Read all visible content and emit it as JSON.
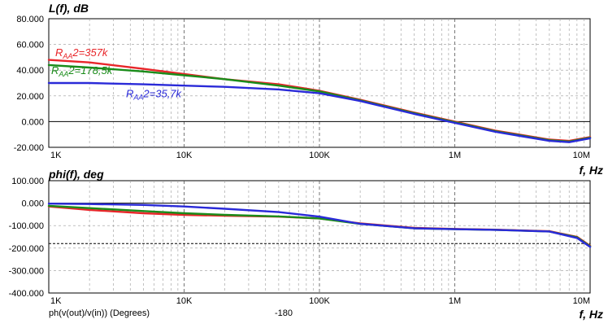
{
  "chart_data": [
    {
      "type": "line",
      "title": "L(f), dB",
      "xlabel": "f, Hz",
      "xscale": "log",
      "xlim": [
        1000,
        10000000
      ],
      "ylim": [
        -20,
        80
      ],
      "xtick_labels": [
        "1K",
        "10K",
        "100K",
        "1M",
        "10M"
      ],
      "ytick_labels": [
        "80.000",
        "60.000",
        "40.000",
        "20.000",
        "0.000",
        "-20.000"
      ],
      "grid": true,
      "series": [
        {
          "name": "RAA2=357k",
          "label_main": "R",
          "label_sub": "AA",
          "label_tail": "2=357k",
          "color": "#e8262a",
          "x": [
            1000,
            2000,
            5000,
            10000,
            20000,
            50000,
            100000,
            200000,
            500000,
            1000000,
            2000000,
            5000000,
            7000000,
            10000000
          ],
          "y": [
            48,
            46,
            41,
            37,
            33,
            29,
            24,
            17,
            7,
            0,
            -7,
            -14,
            -15,
            -12
          ]
        },
        {
          "name": "RAA2=178,5k",
          "label_main": "R",
          "label_sub": "AA",
          "label_tail": "2=178,5k",
          "color": "#1a8c1a",
          "x": [
            1000,
            2000,
            5000,
            10000,
            20000,
            50000,
            100000,
            200000,
            500000,
            1000000,
            2000000,
            5000000,
            7000000,
            10000000
          ],
          "y": [
            44,
            42,
            39,
            36,
            33,
            28,
            23.5,
            16.5,
            6.5,
            -0.5,
            -7.5,
            -14.5,
            -15.5,
            -12.5
          ]
        },
        {
          "name": "RAA2=35,7k",
          "label_main": "R",
          "label_sub": "AA",
          "label_tail": "2=35,7k",
          "color": "#2a2ad8",
          "x": [
            1000,
            2000,
            5000,
            10000,
            20000,
            50000,
            100000,
            200000,
            500000,
            1000000,
            2000000,
            5000000,
            7000000,
            10000000
          ],
          "y": [
            30,
            30,
            29,
            28,
            27,
            25,
            22,
            16,
            6,
            -1,
            -8,
            -15,
            -16,
            -13
          ]
        }
      ]
    },
    {
      "type": "line",
      "title": "phi(f), deg",
      "xlabel": "f, Hz",
      "xscale": "log",
      "xlim": [
        1000,
        10000000
      ],
      "ylim": [
        -400,
        100
      ],
      "xtick_labels": [
        "1K",
        "10K",
        "100K",
        "1M",
        "10M"
      ],
      "ytick_labels": [
        "100.000",
        "0.000",
        "-100.000",
        "-200.000",
        "-300.000",
        "-400.000"
      ],
      "grid": true,
      "reference_line": -180,
      "footer_left": "ph(v(out)/v(in)) (Degrees)",
      "footer_mid": "-180",
      "series": [
        {
          "color": "#e8262a",
          "x": [
            1000,
            2000,
            5000,
            10000,
            20000,
            50000,
            100000,
            200000,
            500000,
            1000000,
            2000000,
            5000000,
            8000000,
            10000000
          ],
          "y": [
            -15,
            -30,
            -45,
            -52,
            -56,
            -60,
            -68,
            -90,
            -110,
            -115,
            -118,
            -125,
            -150,
            -190
          ]
        },
        {
          "color": "#1a8c1a",
          "x": [
            1000,
            2000,
            5000,
            10000,
            20000,
            50000,
            100000,
            200000,
            500000,
            1000000,
            2000000,
            5000000,
            8000000,
            10000000
          ],
          "y": [
            -12,
            -22,
            -35,
            -45,
            -52,
            -59,
            -68,
            -92,
            -112,
            -116,
            -119,
            -126,
            -152,
            -192
          ]
        },
        {
          "color": "#2a2ad8",
          "x": [
            1000,
            2000,
            5000,
            10000,
            20000,
            50000,
            100000,
            200000,
            500000,
            1000000,
            2000000,
            5000000,
            8000000,
            10000000
          ],
          "y": [
            -2,
            -4,
            -8,
            -15,
            -25,
            -40,
            -60,
            -92,
            -112,
            -116,
            -119,
            -126,
            -155,
            -195
          ]
        }
      ]
    }
  ]
}
